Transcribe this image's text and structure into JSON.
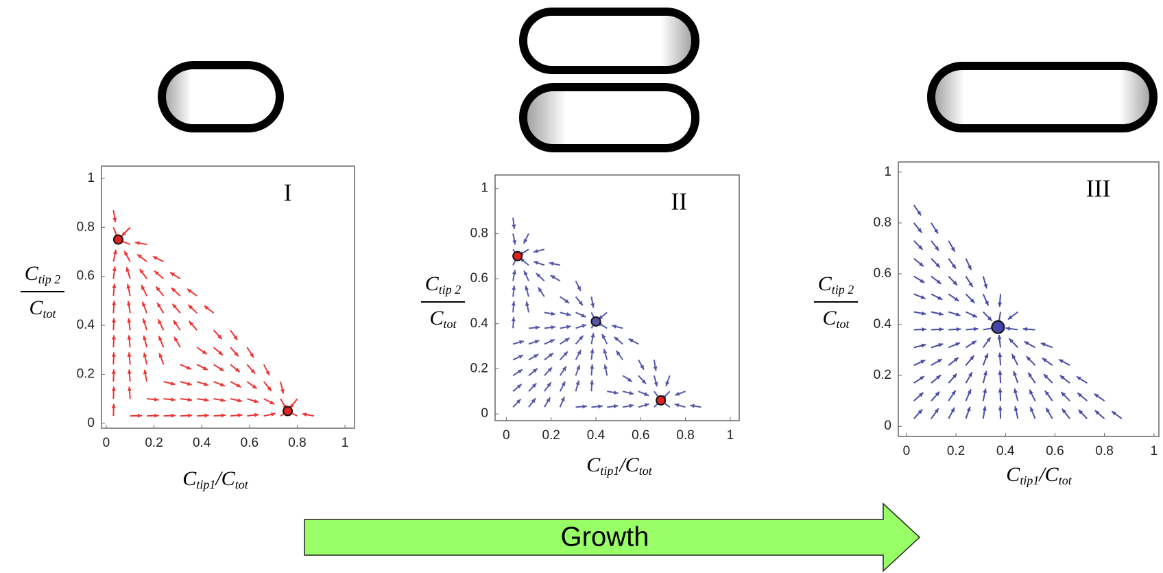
{
  "arrow_label": "Growth",
  "chart_data": [
    {
      "type": "streamplot",
      "panel_label": "I",
      "x_label": {
        "base": "C",
        "sub": "tip1",
        "sep": "/",
        "base2": "C",
        "sub2": "tot"
      },
      "y_label": {
        "base": "C",
        "sub": "tip 2",
        "base2": "C",
        "sub2": "tot"
      },
      "xlim": [
        -0.02,
        1.04
      ],
      "ylim": [
        -0.02,
        1.05
      ],
      "xticks": [
        0,
        0.2,
        0.4,
        0.6,
        0.8,
        1
      ],
      "yticks": [
        0,
        0.2,
        0.4,
        0.6,
        0.8,
        1
      ],
      "stream_color": "#ee3333",
      "points": {
        "x": [
          0.05,
          0.76
        ],
        "y": [
          0.75,
          0.05
        ],
        "colors": [
          "#dd2222",
          "#dd2222"
        ]
      }
    },
    {
      "type": "streamplot",
      "panel_label": "II",
      "x_label": {
        "base": "C",
        "sub": "tip1",
        "sep": "/",
        "base2": "C",
        "sub2": "tot"
      },
      "y_label": {
        "base": "C",
        "sub": "tip 2",
        "base2": "C",
        "sub2": "tot"
      },
      "xlim": [
        -0.05,
        1.04
      ],
      "ylim": [
        -0.03,
        1.06
      ],
      "xticks": [
        0,
        0.2,
        0.4,
        0.6,
        0.8,
        1
      ],
      "yticks": [
        0,
        0.2,
        0.4,
        0.6,
        0.8,
        1
      ],
      "stream_color": "#5555aa",
      "points": {
        "x": [
          0.05,
          0.4,
          0.69
        ],
        "y": [
          0.7,
          0.41,
          0.06
        ],
        "colors": [
          "#dd2222",
          "#5555aa",
          "#dd2222"
        ]
      }
    },
    {
      "type": "streamplot",
      "panel_label": "III",
      "x_label": {
        "base": "C",
        "sub": "tip1",
        "sep": "/",
        "base2": "C",
        "sub2": "tot"
      },
      "y_label": {
        "base": "C",
        "sub": "tip 2",
        "base2": "C",
        "sub2": "tot"
      },
      "xlim": [
        -0.033,
        1.02
      ],
      "ylim": [
        -0.04,
        1.04
      ],
      "xticks": [
        0,
        0.2,
        0.4,
        0.6,
        0.8,
        1
      ],
      "yticks": [
        0,
        0.2,
        0.4,
        0.6,
        0.8,
        1
      ],
      "stream_color": "#4a4aaa",
      "points": {
        "x": [
          0.37
        ],
        "y": [
          0.39
        ],
        "colors": [
          "#4444aa"
        ]
      }
    }
  ]
}
